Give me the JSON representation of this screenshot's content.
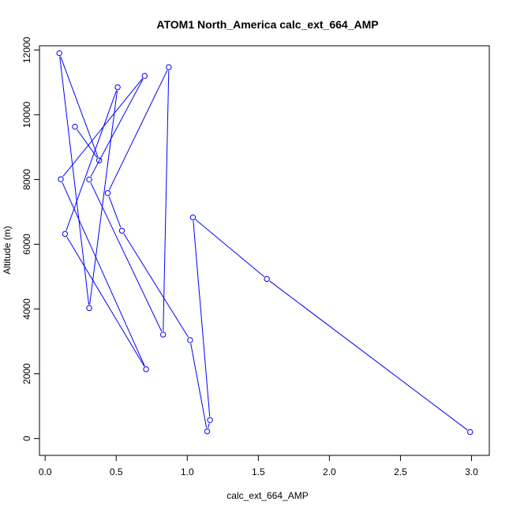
{
  "chart_data": {
    "type": "line",
    "title": "ATOM1 North_America calc_ext_664_AMP",
    "xlabel": "calc_ext_664_AMP",
    "ylabel": "Altitude (m)",
    "xlim": [
      -0.04,
      3.125
    ],
    "ylim": [
      -520,
      12130
    ],
    "x_ticks": [
      0.0,
      0.5,
      1.0,
      1.5,
      2.0,
      2.5,
      3.0
    ],
    "x_tick_labels": [
      "0.0",
      "0.5",
      "1.0",
      "1.5",
      "2.0",
      "2.5",
      "3.0"
    ],
    "y_ticks": [
      0,
      2000,
      4000,
      6000,
      8000,
      10000,
      12000
    ],
    "y_tick_labels": [
      "0",
      "2000",
      "4000",
      "6000",
      "8000",
      "10000",
      "12000"
    ],
    "grid": false,
    "series": [
      {
        "color": "#0000ff",
        "marker": "open-circle",
        "x": [
          2.99,
          1.56,
          1.04,
          1.16,
          1.14,
          1.02,
          0.54,
          0.44,
          0.87,
          0.83,
          0.31,
          0.7,
          0.11,
          0.71,
          0.14,
          0.51,
          0.31,
          0.1,
          0.38,
          0.21
        ],
        "y": [
          200,
          4930,
          6830,
          570,
          220,
          3040,
          6420,
          7580,
          11470,
          3210,
          8000,
          11200,
          8010,
          2140,
          6320,
          10850,
          4030,
          11900,
          8590,
          9630
        ]
      }
    ]
  }
}
